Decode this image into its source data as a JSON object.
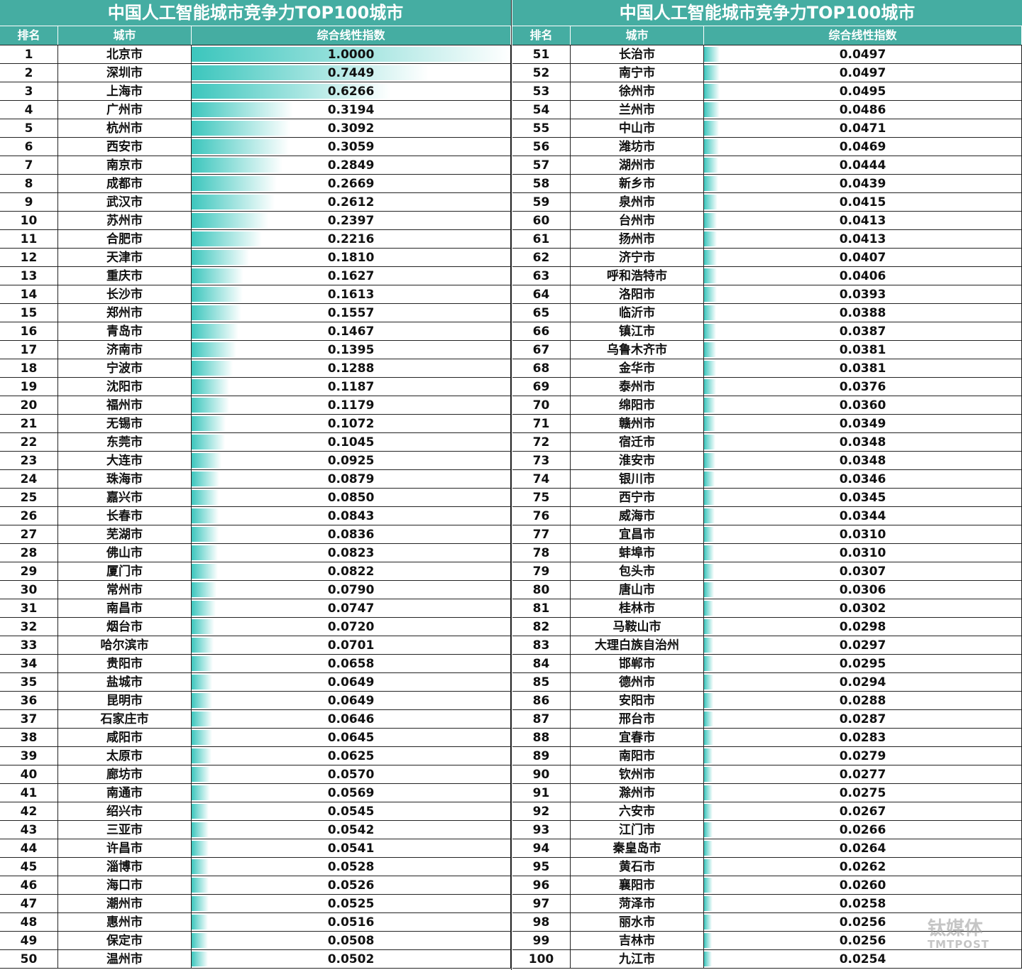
{
  "tables": [
    {
      "title": "中国人工智能城市竞争力TOP100城市",
      "headers": [
        "排名",
        "城市",
        "综合线性指数"
      ],
      "rows": [
        [
          1,
          "北京市",
          {
            "value": 1,
            "label": "1.0000"
          }
        ],
        [
          2,
          "深圳市",
          0.7449
        ],
        [
          3,
          "上海市",
          0.6266
        ],
        [
          4,
          "广州市",
          0.3194
        ],
        [
          5,
          "杭州市",
          0.3092
        ],
        [
          6,
          "西安市",
          0.3059
        ],
        [
          7,
          "南京市",
          0.2849
        ],
        [
          8,
          "成都市",
          0.2669
        ],
        [
          9,
          "武汉市",
          0.2612
        ],
        [
          10,
          "苏州市",
          0.2397
        ],
        [
          11,
          "合肥市",
          0.2216
        ],
        [
          12,
          "天津市",
          {
            "value": 0.181,
            "label": "0.1810"
          }
        ],
        [
          13,
          "重庆市",
          0.1627
        ],
        [
          14,
          "长沙市",
          0.1613
        ],
        [
          15,
          "郑州市",
          0.1557
        ],
        [
          16,
          "青岛市",
          0.1467
        ],
        [
          17,
          "济南市",
          0.1395
        ],
        [
          18,
          "宁波市",
          0.1288
        ],
        [
          19,
          "沈阳市",
          0.1187
        ],
        [
          20,
          "福州市",
          0.1179
        ],
        [
          21,
          "无锡市",
          0.1072
        ],
        [
          22,
          "东莞市",
          0.1045
        ],
        [
          23,
          "大连市",
          0.0925
        ],
        [
          24,
          "珠海市",
          0.0879
        ],
        [
          25,
          "嘉兴市",
          {
            "value": 0.085,
            "label": "0.0850"
          }
        ],
        [
          26,
          "长春市",
          0.0843
        ],
        [
          27,
          "芜湖市",
          0.0836
        ],
        [
          28,
          "佛山市",
          0.0823
        ],
        [
          29,
          "厦门市",
          0.0822
        ],
        [
          30,
          "常州市",
          {
            "value": 0.079,
            "label": "0.0790"
          }
        ],
        [
          31,
          "南昌市",
          0.0747
        ],
        [
          32,
          "烟台市",
          {
            "value": 0.072,
            "label": "0.0720"
          }
        ],
        [
          33,
          "哈尔滨市",
          0.0701
        ],
        [
          34,
          "贵阳市",
          0.0658
        ],
        [
          35,
          "盐城市",
          0.0649
        ],
        [
          36,
          "昆明市",
          0.0649
        ],
        [
          37,
          "石家庄市",
          0.0646
        ],
        [
          38,
          "咸阳市",
          0.0645
        ],
        [
          39,
          "太原市",
          0.0625
        ],
        [
          40,
          "廊坊市",
          {
            "value": 0.057,
            "label": "0.0570"
          }
        ],
        [
          41,
          "南通市",
          0.0569
        ],
        [
          42,
          "绍兴市",
          0.0545
        ],
        [
          43,
          "三亚市",
          0.0542
        ],
        [
          44,
          "许昌市",
          0.0541
        ],
        [
          45,
          "淄博市",
          0.0528
        ],
        [
          46,
          "海口市",
          0.0526
        ],
        [
          47,
          "潮州市",
          0.0525
        ],
        [
          48,
          "惠州市",
          0.0516
        ],
        [
          49,
          "保定市",
          0.0508
        ],
        [
          50,
          "温州市",
          0.0502
        ]
      ]
    },
    {
      "title": "中国人工智能城市竞争力TOP100城市",
      "headers": [
        "排名",
        "城市",
        "综合线性指数"
      ],
      "rows": [
        [
          51,
          "长治市",
          0.0497
        ],
        [
          52,
          "南宁市",
          0.0497
        ],
        [
          53,
          "徐州市",
          0.0495
        ],
        [
          54,
          "兰州市",
          0.0486
        ],
        [
          55,
          "中山市",
          0.0471
        ],
        [
          56,
          "潍坊市",
          0.0469
        ],
        [
          57,
          "湖州市",
          0.0444
        ],
        [
          58,
          "新乡市",
          0.0439
        ],
        [
          59,
          "泉州市",
          0.0415
        ],
        [
          60,
          "台州市",
          0.0413
        ],
        [
          61,
          "扬州市",
          0.0413
        ],
        [
          62,
          "济宁市",
          0.0407
        ],
        [
          63,
          "呼和浩特市",
          0.0406
        ],
        [
          64,
          "洛阳市",
          0.0393
        ],
        [
          65,
          "临沂市",
          0.0388
        ],
        [
          66,
          "镇江市",
          0.0387
        ],
        [
          67,
          "乌鲁木齐市",
          0.0381
        ],
        [
          68,
          "金华市",
          0.0381
        ],
        [
          69,
          "泰州市",
          0.0376
        ],
        [
          70,
          "绵阳市",
          {
            "value": 0.036,
            "label": "0.0360"
          }
        ],
        [
          71,
          "赣州市",
          0.0349
        ],
        [
          72,
          "宿迁市",
          0.0348
        ],
        [
          73,
          "淮安市",
          0.0348
        ],
        [
          74,
          "银川市",
          0.0346
        ],
        [
          75,
          "西宁市",
          0.0345
        ],
        [
          76,
          "威海市",
          0.0344
        ],
        [
          77,
          "宜昌市",
          {
            "value": 0.031,
            "label": "0.0310"
          }
        ],
        [
          78,
          "蚌埠市",
          {
            "value": 0.031,
            "label": "0.0310"
          }
        ],
        [
          79,
          "包头市",
          0.0307
        ],
        [
          80,
          "唐山市",
          0.0306
        ],
        [
          81,
          "桂林市",
          0.0302
        ],
        [
          82,
          "马鞍山市",
          0.0298
        ],
        [
          83,
          "大理白族自治州",
          0.0297
        ],
        [
          84,
          "邯郸市",
          0.0295
        ],
        [
          85,
          "德州市",
          0.0294
        ],
        [
          86,
          "安阳市",
          0.0288
        ],
        [
          87,
          "邢台市",
          0.0287
        ],
        [
          88,
          "宜春市",
          0.0283
        ],
        [
          89,
          "南阳市",
          0.0279
        ],
        [
          90,
          "钦州市",
          0.0277
        ],
        [
          91,
          "滁州市",
          0.0275
        ],
        [
          92,
          "六安市",
          0.0267
        ],
        [
          93,
          "江门市",
          0.0266
        ],
        [
          94,
          "秦皇岛市",
          0.0264
        ],
        [
          95,
          "黄石市",
          0.0262
        ],
        [
          96,
          "襄阳市",
          {
            "value": 0.026,
            "label": "0.0260"
          }
        ],
        [
          97,
          "菏泽市",
          0.0258
        ],
        [
          98,
          "丽水市",
          0.0256
        ],
        [
          99,
          "吉林市",
          0.0256
        ],
        [
          100,
          "九江市",
          0.0254
        ]
      ]
    }
  ],
  "watermark": [
    "钛媒体",
    "TMTPOST"
  ]
}
